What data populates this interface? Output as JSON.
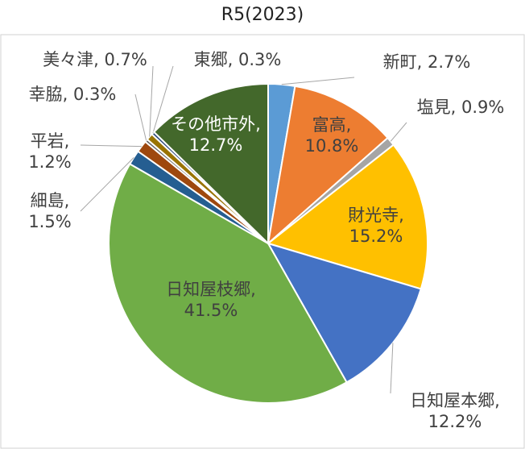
{
  "chart_data": {
    "type": "pie",
    "title": "R5(2023)",
    "values": [
      2.7,
      10.8,
      0.9,
      15.2,
      12.2,
      41.5,
      1.5,
      1.2,
      0.3,
      0.7,
      0.3,
      12.7
    ],
    "value_labels": [
      "新町, 2.7%",
      "富高, 10.8%",
      "塩見, 0.9%",
      "財光寺, 15.2%",
      "日知屋本郷, 12.2%",
      "日知屋枝郷, 41.5%",
      "細島, 1.5%",
      "平岩, 1.2%",
      "幸脇, 0.3%",
      "美々津, 0.7%",
      "東郷, 0.3%",
      "その他市外, 12.7%"
    ],
    "colors": [
      "#5B9BD5",
      "#ED7D31",
      "#A5A5A5",
      "#FFC000",
      "#4472C4",
      "#70AD47",
      "#255E91",
      "#9E480E",
      "#636363",
      "#997300",
      "#264478",
      "#43682B"
    ]
  }
}
